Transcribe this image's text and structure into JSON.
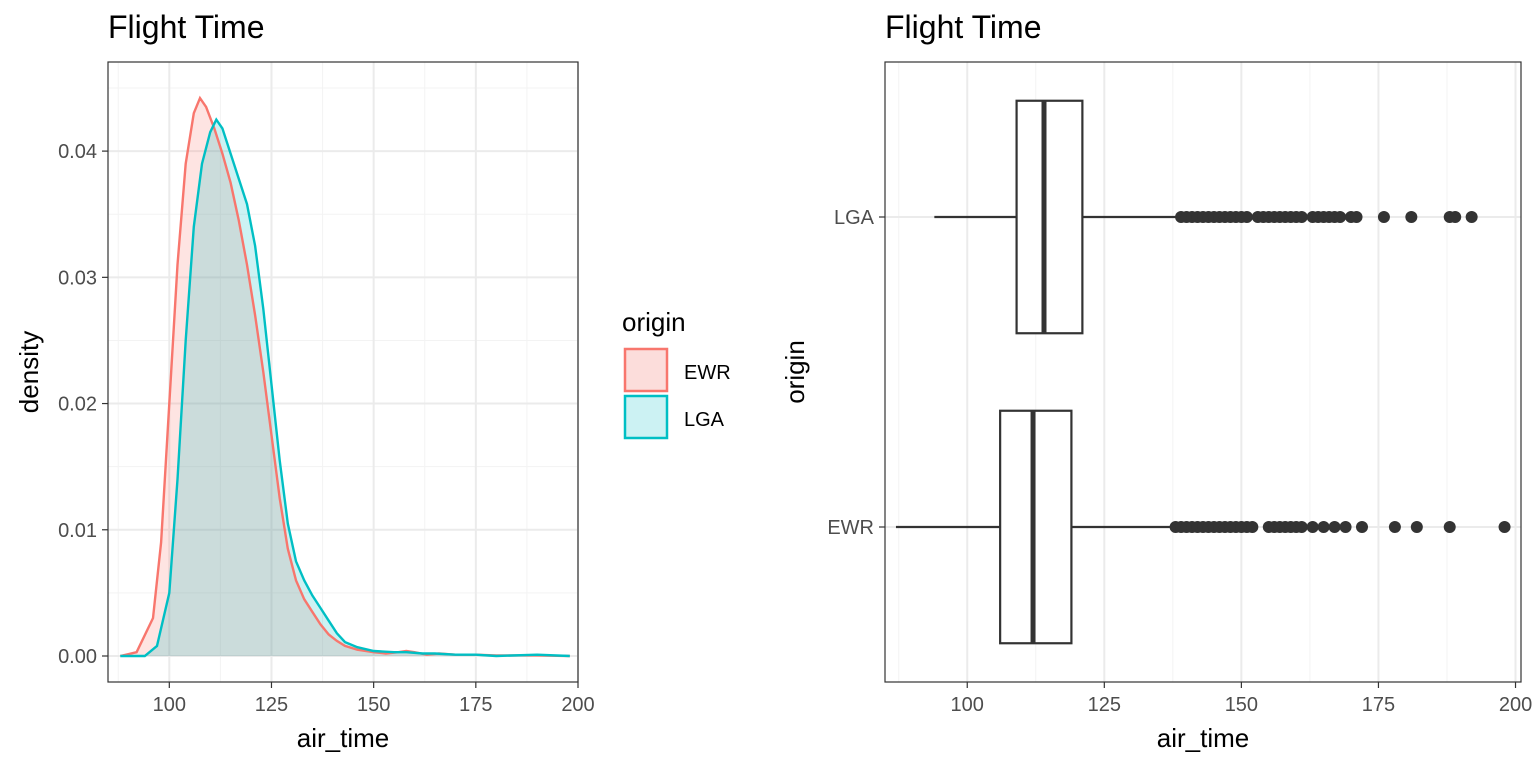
{
  "chart_data": [
    {
      "type": "area",
      "title": "Flight Time",
      "xlabel": "air_time",
      "ylabel": "density",
      "xlim": [
        85,
        200
      ],
      "ylim": [
        0,
        0.045
      ],
      "x_ticks": [
        "100",
        "125",
        "150",
        "175",
        "200"
      ],
      "y_ticks": [
        "0.00",
        "0.01",
        "0.02",
        "0.03",
        "0.04"
      ],
      "grid": true,
      "legend": {
        "title": "origin",
        "position": "right",
        "entries": [
          {
            "label": "EWR",
            "color": "#F8766D",
            "fill": "#FCDDDB"
          },
          {
            "label": "LGA",
            "color": "#00BFC4",
            "fill": "#CCF2F3"
          }
        ]
      },
      "series": [
        {
          "name": "EWR",
          "color": "#F8766D",
          "points": [
            [
              88,
              0.0
            ],
            [
              92,
              0.0003
            ],
            [
              96,
              0.003
            ],
            [
              98,
              0.009
            ],
            [
              100,
              0.02
            ],
            [
              102,
              0.031
            ],
            [
              104,
              0.039
            ],
            [
              106,
              0.043
            ],
            [
              107.5,
              0.0442
            ],
            [
              109,
              0.0435
            ],
            [
              111,
              0.0418
            ],
            [
              113,
              0.0398
            ],
            [
              115,
              0.0375
            ],
            [
              117,
              0.0345
            ],
            [
              119,
              0.031
            ],
            [
              121,
              0.027
            ],
            [
              123,
              0.0225
            ],
            [
              125,
              0.0175
            ],
            [
              127,
              0.0125
            ],
            [
              129,
              0.0085
            ],
            [
              131,
              0.006
            ],
            [
              133,
              0.0045
            ],
            [
              135,
              0.0035
            ],
            [
              137,
              0.0025
            ],
            [
              139,
              0.0017
            ],
            [
              141,
              0.0012
            ],
            [
              143,
              0.0008
            ],
            [
              146,
              0.0005
            ],
            [
              150,
              0.0003
            ],
            [
              153,
              0.0002
            ],
            [
              156,
              0.0003
            ],
            [
              158,
              0.0004
            ],
            [
              160,
              0.0003
            ],
            [
              163,
              0.0001
            ],
            [
              166,
              0.0002
            ],
            [
              170,
              0.0001
            ],
            [
              175,
              0.0001
            ],
            [
              180,
              5e-05
            ],
            [
              190,
              5e-05
            ],
            [
              198,
              0.0
            ]
          ]
        },
        {
          "name": "LGA",
          "color": "#00BFC4",
          "points": [
            [
              88,
              0.0
            ],
            [
              94,
              0.0
            ],
            [
              97,
              0.0008
            ],
            [
              100,
              0.005
            ],
            [
              102,
              0.014
            ],
            [
              104,
              0.025
            ],
            [
              106,
              0.034
            ],
            [
              108,
              0.039
            ],
            [
              110,
              0.0415
            ],
            [
              111.5,
              0.0425
            ],
            [
              113,
              0.0418
            ],
            [
              115,
              0.0398
            ],
            [
              117,
              0.0378
            ],
            [
              119,
              0.0358
            ],
            [
              121,
              0.0325
            ],
            [
              123,
              0.0275
            ],
            [
              125,
              0.0215
            ],
            [
              127,
              0.0155
            ],
            [
              129,
              0.0105
            ],
            [
              131,
              0.0075
            ],
            [
              133,
              0.006
            ],
            [
              135,
              0.0048
            ],
            [
              137,
              0.0038
            ],
            [
              139,
              0.0028
            ],
            [
              141,
              0.0018
            ],
            [
              143,
              0.0011
            ],
            [
              146,
              0.0007
            ],
            [
              150,
              0.0004
            ],
            [
              155,
              0.0003
            ],
            [
              158,
              0.0003
            ],
            [
              162,
              0.0002
            ],
            [
              165,
              0.0002
            ],
            [
              170,
              0.0001
            ],
            [
              175,
              0.0001
            ],
            [
              180,
              0.0
            ],
            [
              190,
              0.0001
            ],
            [
              198,
              0.0
            ]
          ]
        }
      ]
    },
    {
      "type": "boxplot",
      "title": "Flight Time",
      "xlabel": "air_time",
      "ylabel": "origin",
      "xlim": [
        85,
        201
      ],
      "x_ticks": [
        "100",
        "125",
        "150",
        "175",
        "200"
      ],
      "categories": [
        "LGA",
        "EWR"
      ],
      "grid": true,
      "boxes": [
        {
          "name": "LGA",
          "whisker_low": 94,
          "q1": 109,
          "median": 114,
          "q3": 121,
          "whisker_high": 139,
          "outliers": [
            139,
            140,
            141,
            142,
            143,
            144,
            145,
            146,
            147,
            148,
            149,
            150,
            151,
            153,
            154,
            155,
            156,
            157,
            158,
            159,
            160,
            161,
            163,
            164,
            165,
            166,
            167,
            168,
            170,
            171,
            176,
            181,
            188,
            189,
            192
          ]
        },
        {
          "name": "EWR",
          "whisker_low": 87,
          "q1": 106,
          "median": 112,
          "q3": 119,
          "whisker_high": 138,
          "outliers": [
            138,
            139,
            140,
            141,
            142,
            143,
            144,
            145,
            146,
            147,
            148,
            149,
            150,
            151,
            152,
            155,
            156,
            157,
            158,
            159,
            160,
            161,
            163,
            165,
            167,
            169,
            172,
            178,
            182,
            188,
            198
          ]
        }
      ]
    }
  ]
}
